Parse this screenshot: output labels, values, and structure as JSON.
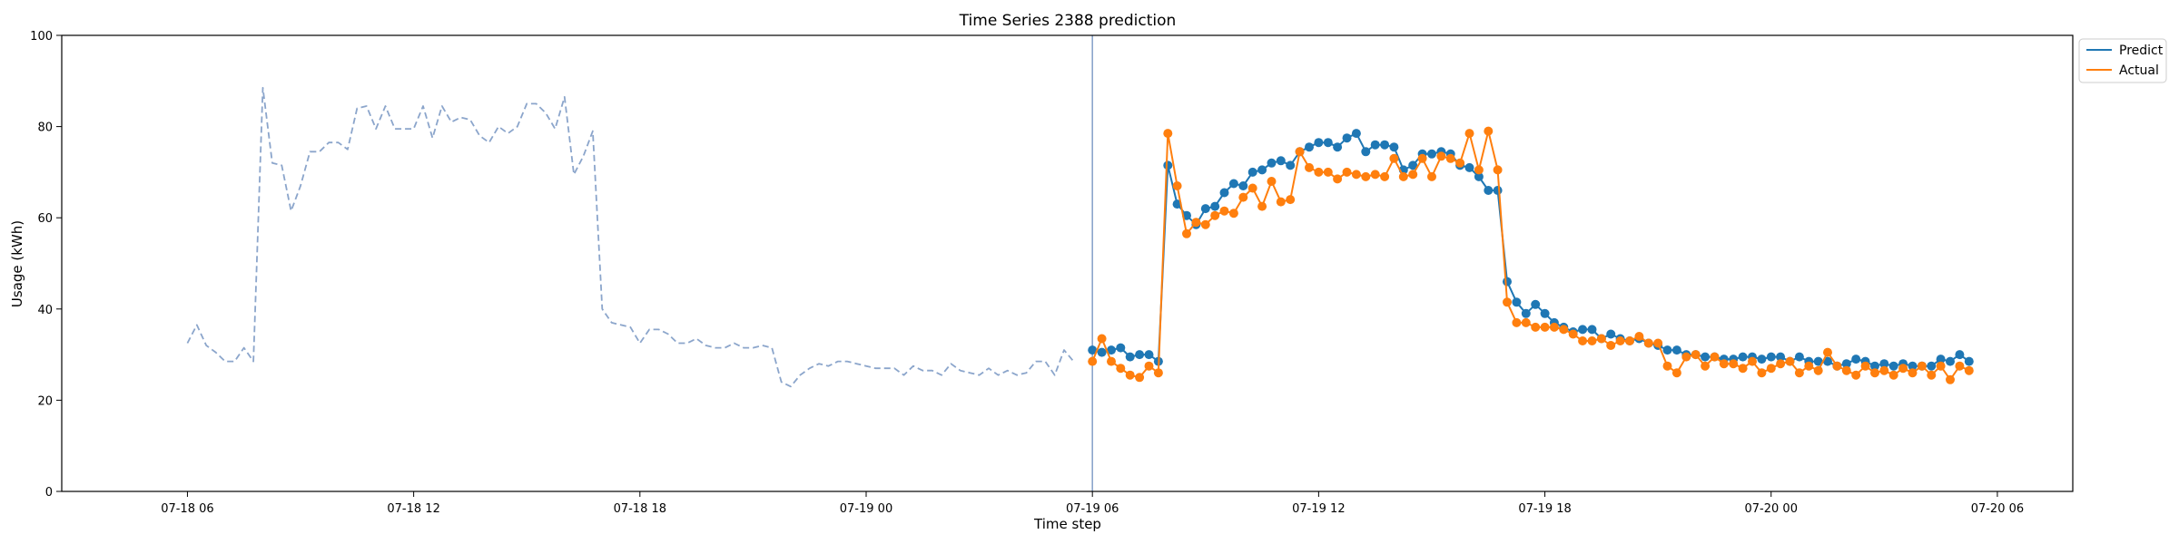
{
  "chart_data": {
    "type": "line",
    "title": "Time Series 2388 prediction",
    "xlabel": "Time step",
    "ylabel": "Usage (kWh)",
    "ylim": [
      0,
      100
    ],
    "yticks": [
      0,
      20,
      40,
      60,
      80,
      100
    ],
    "xlim": [
      "2024-07-18 02:40",
      "2024-07-20 08:00"
    ],
    "xticks": [
      {
        "t": "2024-07-18 06:00",
        "label": "07-18 06"
      },
      {
        "t": "2024-07-18 12:00",
        "label": "07-18 12"
      },
      {
        "t": "2024-07-18 18:00",
        "label": "07-18 18"
      },
      {
        "t": "2024-07-19 00:00",
        "label": "07-19 00"
      },
      {
        "t": "2024-07-19 06:00",
        "label": "07-19 06"
      },
      {
        "t": "2024-07-19 12:00",
        "label": "07-19 12"
      },
      {
        "t": "2024-07-19 18:00",
        "label": "07-19 18"
      },
      {
        "t": "2024-07-20 00:00",
        "label": "07-20 00"
      },
      {
        "t": "2024-07-20 06:00",
        "label": "07-20 06"
      }
    ],
    "forecast_start": "2024-07-19 06:00",
    "legend_position": "upper-right",
    "colors": {
      "history": "#8ba5cb",
      "predict": "#1f77b4",
      "actual": "#ff7f0e",
      "divider": "#8ba5cb"
    },
    "series": [
      {
        "key": "history",
        "style": "dashed",
        "start": "2024-07-18 06:00",
        "step_minutes": 15,
        "values": [
          32.5,
          36.5,
          32.0,
          30.5,
          28.5,
          28.5,
          31.5,
          28.5,
          88.5,
          72.0,
          71.5,
          61.5,
          67.0,
          74.5,
          74.5,
          76.5,
          76.5,
          75.0,
          84.0,
          84.5,
          79.5,
          84.5,
          79.5,
          79.5,
          79.5,
          84.5,
          77.5,
          84.5,
          81.0,
          82.0,
          81.5,
          78.0,
          76.5,
          80.0,
          78.5,
          80.0,
          85.0,
          85.0,
          83.0,
          79.5,
          86.5,
          69.5,
          73.5,
          79.0,
          40.0,
          37.0,
          36.5,
          36.0,
          32.5,
          35.5,
          35.5,
          34.5,
          32.5,
          32.5,
          33.5,
          32.0,
          31.5,
          31.5,
          32.5,
          31.5,
          31.5,
          32.0,
          31.5,
          24.0,
          23.0,
          25.5,
          27.0,
          28.0,
          27.5,
          28.5,
          28.5,
          28.0,
          27.5,
          27.0,
          27.0,
          27.0,
          25.5,
          27.5,
          26.5,
          26.5,
          25.5,
          28.0,
          26.5,
          26.0,
          25.5,
          27.0,
          25.5,
          26.5,
          25.5,
          26.0,
          28.5,
          28.5,
          25.5,
          31.0,
          28.5
        ]
      },
      {
        "key": "predict",
        "name": "Predict",
        "style": "solid-markers",
        "start": "2024-07-19 06:00",
        "step_minutes": 15,
        "values": [
          31.0,
          30.5,
          31.0,
          31.5,
          29.5,
          30.0,
          30.0,
          28.5,
          71.5,
          63.0,
          60.5,
          58.5,
          62.0,
          62.5,
          65.5,
          67.5,
          67.0,
          70.0,
          70.5,
          72.0,
          72.5,
          71.5,
          74.5,
          75.5,
          76.5,
          76.5,
          75.5,
          77.5,
          78.5,
          74.5,
          76.0,
          76.0,
          75.5,
          70.5,
          71.5,
          74.0,
          74.0,
          74.5,
          74.0,
          71.5,
          71.0,
          69.0,
          66.0,
          66.0,
          46.0,
          41.5,
          39.0,
          41.0,
          39.0,
          37.0,
          36.0,
          35.0,
          35.5,
          35.5,
          33.5,
          34.5,
          33.5,
          33.0,
          33.5,
          32.5,
          32.0,
          31.0,
          31.0,
          30.0,
          30.0,
          29.5,
          29.5,
          29.0,
          29.0,
          29.5,
          29.5,
          29.0,
          29.5,
          29.5,
          28.5,
          29.5,
          28.5,
          28.5,
          28.5,
          27.5,
          28.0,
          29.0,
          28.5,
          27.5,
          28.0,
          27.5,
          28.0,
          27.5,
          27.5,
          27.5,
          29.0,
          28.5,
          30.0,
          28.5
        ]
      },
      {
        "key": "actual",
        "name": "Actual",
        "style": "solid-markers",
        "start": "2024-07-19 06:00",
        "step_minutes": 15,
        "values": [
          28.5,
          33.5,
          28.5,
          27.0,
          25.5,
          25.0,
          27.5,
          26.0,
          78.5,
          67.0,
          56.5,
          59.0,
          58.5,
          60.5,
          61.5,
          61.0,
          64.5,
          66.5,
          62.5,
          68.0,
          63.5,
          64.0,
          74.5,
          71.0,
          70.0,
          70.0,
          68.5,
          70.0,
          69.5,
          69.0,
          69.5,
          69.0,
          73.0,
          69.0,
          69.5,
          73.0,
          69.0,
          73.5,
          73.0,
          72.0,
          78.5,
          70.5,
          79.0,
          70.5,
          41.5,
          37.0,
          37.0,
          36.0,
          36.0,
          36.0,
          35.5,
          34.5,
          33.0,
          33.0,
          33.5,
          32.0,
          33.0,
          33.0,
          34.0,
          32.5,
          32.5,
          27.5,
          26.0,
          29.5,
          30.0,
          27.5,
          29.5,
          28.0,
          28.0,
          27.0,
          28.5,
          26.0,
          27.0,
          28.0,
          28.5,
          26.0,
          27.5,
          26.5,
          30.5,
          27.5,
          26.5,
          25.5,
          27.5,
          26.0,
          26.5,
          25.5,
          27.0,
          26.0,
          27.5,
          25.5,
          27.5,
          24.5,
          27.5,
          26.5
        ]
      }
    ]
  }
}
